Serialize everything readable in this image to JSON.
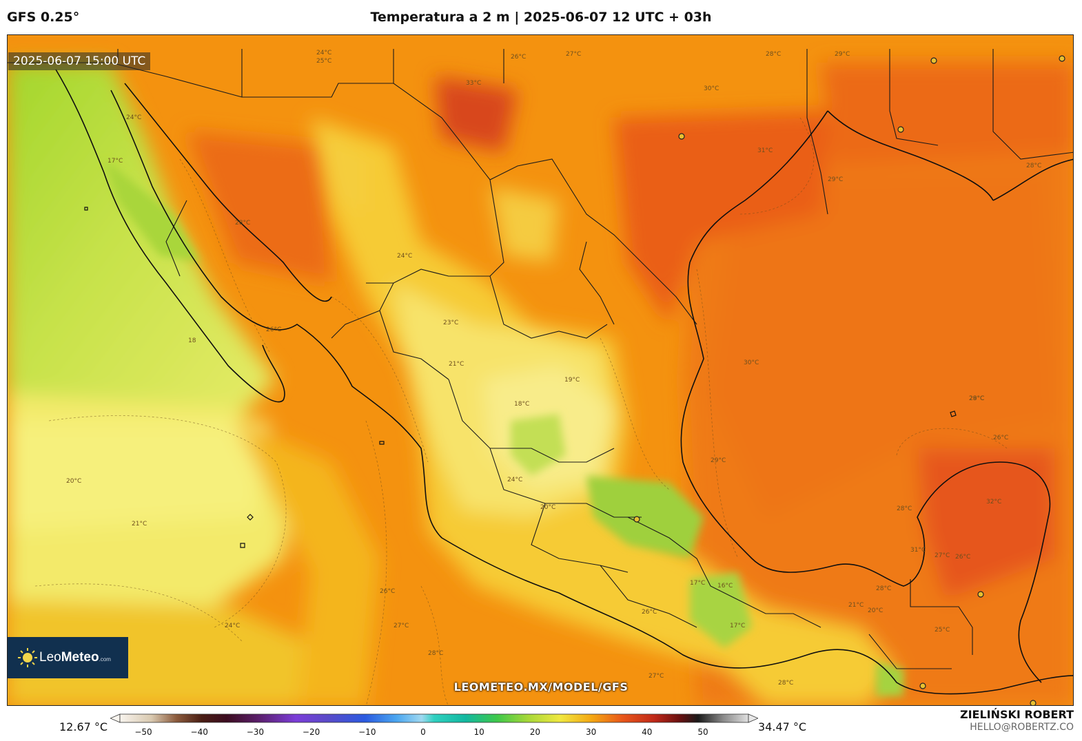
{
  "header": {
    "model": "GFS 0.25°",
    "title": "Temperatura a 2 m | 2025-06-07 12 UTC + 03h"
  },
  "map": {
    "valid_time": "2025-06-07 15:00 UTC",
    "watermark": "LEOMETEO.MX/MODEL/GFS",
    "logo": {
      "brand_light": "Leo",
      "brand_bold": "Meteo",
      "suffix": ".com"
    },
    "contour_labels": [
      "24°C",
      "25°C",
      "26°C",
      "27°C",
      "28°C",
      "29°C",
      "30°C",
      "31°C",
      "33°C",
      "24°C",
      "17°C",
      "28°C",
      "26°C",
      "18",
      "24°C",
      "23°C",
      "21°C",
      "19°C",
      "18°C",
      "24°C",
      "20°C",
      "21°C",
      "20°C",
      "26°C",
      "27°C",
      "28°C",
      "24°C",
      "26°C",
      "27°C",
      "28°C",
      "29°C",
      "30°C",
      "28°C",
      "27°C",
      "31°C",
      "26°C",
      "28°C",
      "29°C",
      "26°C",
      "17°C",
      "16°C",
      "17°C",
      "21°C",
      "20°C",
      "25°C",
      "28°C",
      "29°C",
      "32°C",
      "28°C"
    ]
  },
  "colorbar": {
    "min_label": "12.67 °C",
    "max_label": "34.47 °C",
    "ticks": [
      "−50",
      "−40",
      "−30",
      "−20",
      "−10",
      "0",
      "10",
      "20",
      "30",
      "40",
      "50"
    ]
  },
  "author": {
    "name": "ZIELIŃSKI ROBERT",
    "email": "HELLO@ROBERTZ.CO"
  },
  "colors": {
    "pacific_cool": "#a6d82a",
    "pacific_yellow": "#f5ee70",
    "orange": "#f39b12",
    "deep_orange": "#ee6a16",
    "hot": "#e2501a",
    "highland_green": "#9ccf3a"
  }
}
